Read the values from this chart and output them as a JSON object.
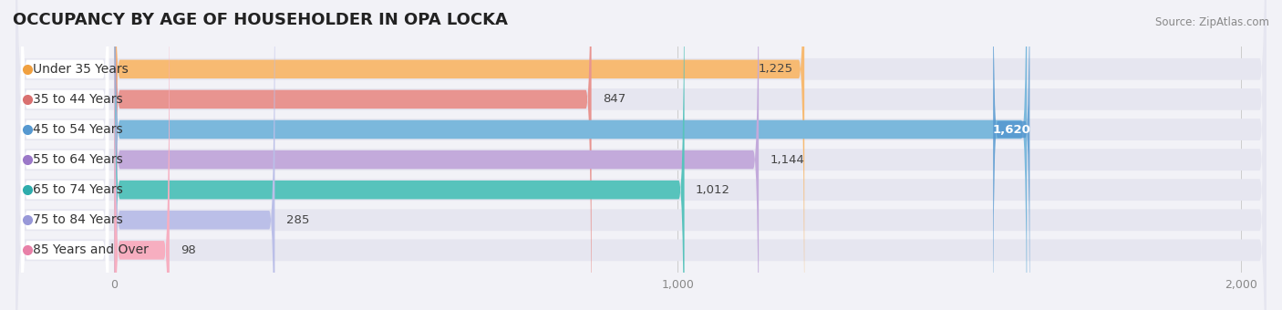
{
  "title": "OCCUPANCY BY AGE OF HOUSEHOLDER IN OPA LOCKA",
  "source": "Source: ZipAtlas.com",
  "categories": [
    "Under 35 Years",
    "35 to 44 Years",
    "45 to 54 Years",
    "55 to 64 Years",
    "65 to 74 Years",
    "75 to 84 Years",
    "85 Years and Over"
  ],
  "values": [
    1225,
    847,
    1620,
    1144,
    1012,
    285,
    98
  ],
  "bar_colors": [
    "#F7BA72",
    "#E89490",
    "#7BB8DC",
    "#C3AADB",
    "#57C3BC",
    "#BBBFE8",
    "#F7AEC0"
  ],
  "label_dot_colors": [
    "#F0A040",
    "#D97070",
    "#5598D0",
    "#9B78C8",
    "#2EACAC",
    "#9898D8",
    "#E880A8"
  ],
  "background_color": "#f2f2f7",
  "track_color": "#e6e6f0",
  "white_color": "#ffffff",
  "xlim_min": -180,
  "xlim_max": 2050,
  "xticks": [
    0,
    1000,
    2000
  ],
  "title_fontsize": 13,
  "label_fontsize": 10,
  "value_fontsize": 9.5
}
